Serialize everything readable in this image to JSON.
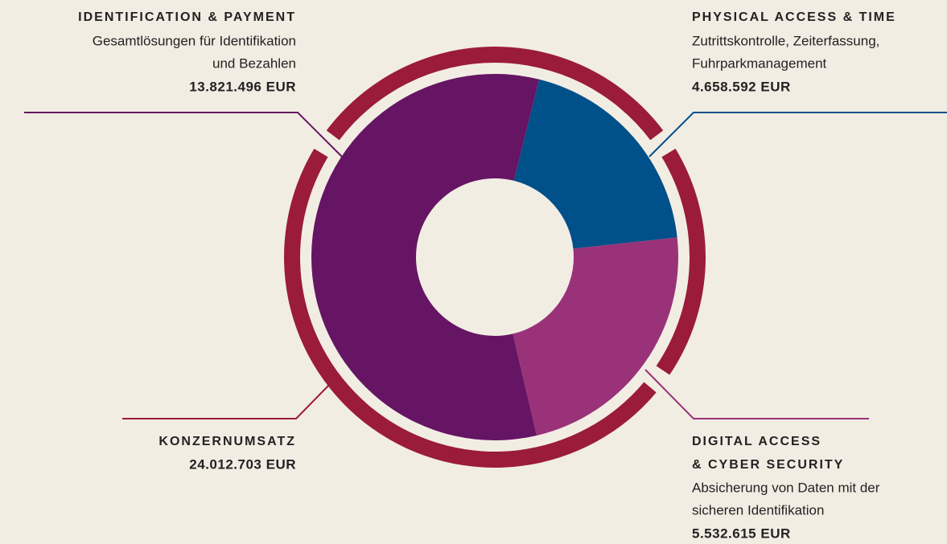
{
  "chart_data": {
    "type": "donut",
    "categories": [
      "IDENTIFICATION & PAYMENT",
      "PHYSICAL ACCESS & TIME",
      [
        "DIGITAL ACCESS",
        "& CYBER SECURITY"
      ]
    ],
    "descriptions": [
      [
        "Gesamtlösungen für Identifikation",
        "und Bezahlen"
      ],
      [
        "Zutrittskontrolle, Zeiterfassung,",
        "Fuhrparkmanagement"
      ],
      [
        "Absicherung von Daten mit der",
        "sicheren Identifikation"
      ]
    ],
    "values": [
      13821496,
      4658592,
      5532615
    ],
    "value_labels": [
      "13.821.496 EUR",
      "4.658.592 EUR",
      "5.532.615 EUR"
    ],
    "colors": [
      "#651563",
      "#00508a",
      "#9a3279"
    ],
    "total": {
      "label": "KONZERNUMSATZ",
      "value": 24012703,
      "value_label": "24.012.703 EUR",
      "color": "#9b1b3b"
    }
  }
}
